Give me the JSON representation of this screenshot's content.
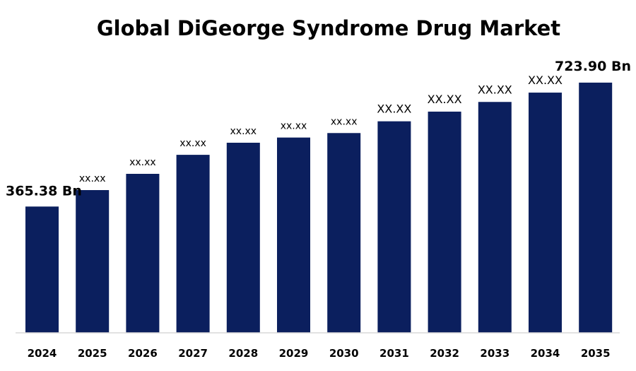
{
  "chart_data": {
    "type": "bar",
    "title": "Global DiGeorge Syndrome Drug Market",
    "xlabel": "",
    "ylabel": "",
    "categories": [
      "2024",
      "2025",
      "2026",
      "2027",
      "2028",
      "2029",
      "2030",
      "2031",
      "2032",
      "2033",
      "2034",
      "2035"
    ],
    "values": [
      365.38,
      413,
      460,
      515,
      550,
      565,
      578,
      612,
      640,
      668,
      695,
      723.9
    ],
    "data_labels": [
      "365.38 Bn",
      "xx.xx",
      "xx.xx",
      "xx.xx",
      "xx.xx",
      "xx.xx",
      "xx.xx",
      "XX.XX",
      "XX.XX",
      "XX.XX",
      "XX.XX",
      "723.90 Bn"
    ],
    "ylim": [
      0,
      750
    ],
    "grid": false,
    "legend": "none",
    "bar_color": "#0b1f5e",
    "axis_color": "#d9d9d9"
  }
}
